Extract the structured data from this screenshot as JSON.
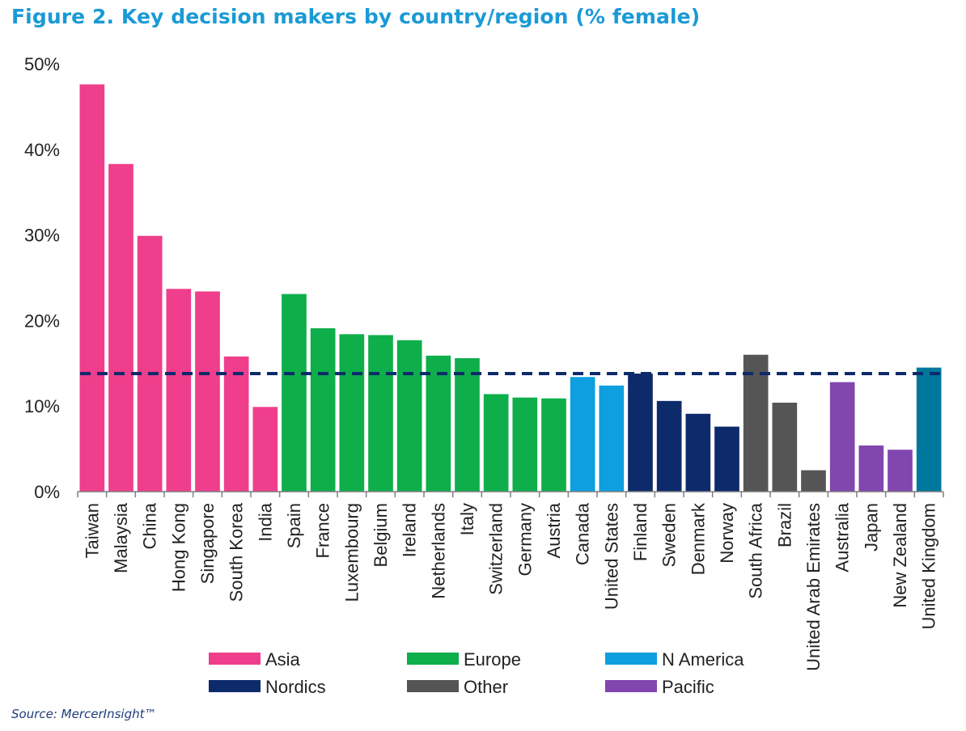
{
  "title": "Figure 2. Key decision makers by country/region (% female)",
  "source": "Source: MercerInsight™",
  "chart_data": {
    "type": "bar",
    "ylim": [
      0,
      50
    ],
    "yticks": [
      "0%",
      "10%",
      "20%",
      "30%",
      "40%",
      "50%"
    ],
    "ytick_values": [
      0,
      10,
      20,
      30,
      40,
      50
    ],
    "reference_line": {
      "value": 13.8,
      "style": "dashed",
      "color": "#0d2a6b"
    },
    "groups": [
      {
        "name": "Asia",
        "color": "#ee3e8c"
      },
      {
        "name": "Europe",
        "color": "#0eae4b"
      },
      {
        "name": "N America",
        "color": "#0d9fe0"
      },
      {
        "name": "Nordics",
        "color": "#0d2a6b"
      },
      {
        "name": "Other",
        "color": "#555555"
      },
      {
        "name": "Pacific",
        "color": "#8246af"
      },
      {
        "name": "",
        "color": "#00789d"
      }
    ],
    "legend_order": [
      "Asia",
      "Europe",
      "N America",
      "Nordics",
      "Other",
      "Pacific"
    ],
    "legend_placement": "bottom",
    "categories": [
      "Taiwan",
      "Malaysia",
      "China",
      "Hong Kong",
      "Singapore",
      "South Korea",
      "India",
      "Spain",
      "France",
      "Luxembourg",
      "Belgium",
      "Ireland",
      "Netherlands",
      "Italy",
      "Switzerland",
      "Germany",
      "Austria",
      "Canada",
      "United States",
      "Finland",
      "Sweden",
      "Denmark",
      "Norway",
      "South Africa",
      "Brazil",
      "United Arab Emirates",
      "Australia",
      "Japan",
      "New Zealand",
      "United Kingdom"
    ],
    "values": [
      47.6,
      38.3,
      29.9,
      23.7,
      23.4,
      15.8,
      9.9,
      23.1,
      19.1,
      18.4,
      18.3,
      17.7,
      15.9,
      15.6,
      11.4,
      11.0,
      10.9,
      13.4,
      12.4,
      13.8,
      10.6,
      9.1,
      7.6,
      16.0,
      10.4,
      2.5,
      12.8,
      5.4,
      4.9,
      14.5
    ],
    "bar_groups": [
      "Asia",
      "Asia",
      "Asia",
      "Asia",
      "Asia",
      "Asia",
      "Asia",
      "Europe",
      "Europe",
      "Europe",
      "Europe",
      "Europe",
      "Europe",
      "Europe",
      "Europe",
      "Europe",
      "Europe",
      "N America",
      "N America",
      "Nordics",
      "Nordics",
      "Nordics",
      "Nordics",
      "Other",
      "Other",
      "Other",
      "Pacific",
      "Pacific",
      "Pacific",
      ""
    ]
  }
}
